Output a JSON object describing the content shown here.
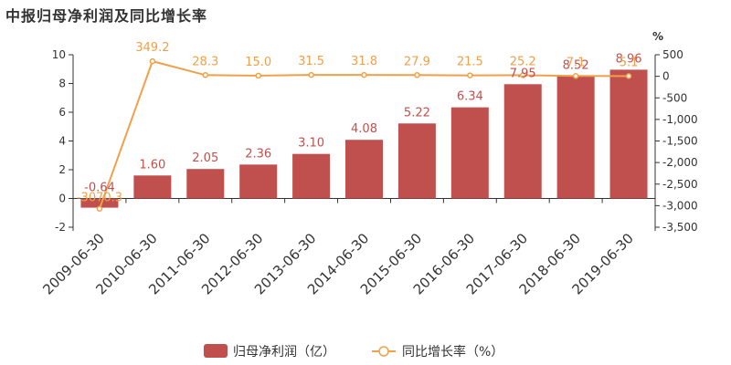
{
  "chart_data": {
    "type": "bar",
    "title": "中报归母净利润及同比增长率",
    "categories": [
      "2009-06-30",
      "2010-06-30",
      "2011-06-30",
      "2012-06-30",
      "2013-06-30",
      "2014-06-30",
      "2015-06-30",
      "2016-06-30",
      "2017-06-30",
      "2018-06-30",
      "2019-06-30"
    ],
    "series": [
      {
        "name": "归母净利润（亿）",
        "type": "bar",
        "axis": "left",
        "color": "#c0504d",
        "values": [
          -0.64,
          1.6,
          2.05,
          2.36,
          3.1,
          4.08,
          5.22,
          6.34,
          7.95,
          8.52,
          8.96
        ],
        "labels": [
          "-0.64",
          "1.60",
          "2.05",
          "2.36",
          "3.10",
          "4.08",
          "5.22",
          "6.34",
          "7.95",
          "8.52",
          "8.96"
        ]
      },
      {
        "name": "同比增长率（%）",
        "type": "line",
        "axis": "right",
        "color": "#f0a04b",
        "values": [
          -3070.3,
          349.2,
          28.3,
          15.0,
          31.5,
          31.8,
          27.9,
          21.5,
          25.2,
          7.1,
          5.1
        ],
        "labels": [
          "-3070.3",
          "349.2",
          "28.3",
          "15.0",
          "31.5",
          "31.8",
          "27.9",
          "21.5",
          "25.2",
          "7.1",
          "5.1"
        ]
      }
    ],
    "y_left": {
      "min": -2,
      "max": 10,
      "ticks": [
        -2,
        0,
        2,
        4,
        6,
        8,
        10
      ]
    },
    "y_right": {
      "min": -3500,
      "max": 500,
      "unit": "%",
      "ticks": [
        500,
        0,
        -500,
        -1000,
        -1500,
        -2000,
        -2500,
        -3000,
        -3500
      ],
      "tick_labels": [
        "500",
        "0",
        "-500",
        "-1,000",
        "-1,500",
        "-2,000",
        "-2,500",
        "-3,000",
        "-3,500"
      ]
    },
    "legend_position": "bottom-center"
  }
}
